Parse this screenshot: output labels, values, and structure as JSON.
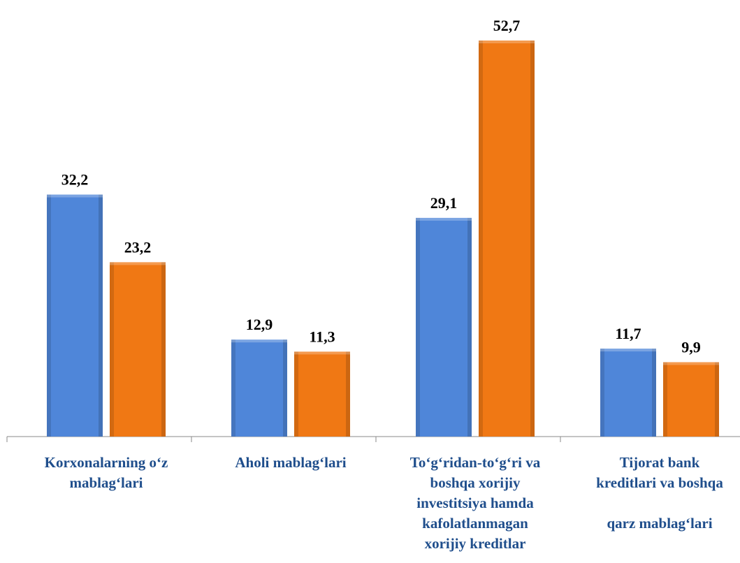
{
  "chart_data": {
    "type": "bar",
    "categories": [
      "Korxonalarning o‘z\nmablag‘lari",
      "Aholi mablag‘lari",
      "To‘g‘ridan-to‘g‘ri va\nboshqa xorijiy\ninvestitsiya hamda\nkafolatlanmagan\nxorijiy kreditlar",
      "Tijorat bank\nkreditlari va boshqa\n\nqarz mablag‘lari"
    ],
    "series": [
      {
        "color": "#4f86d9",
        "values": [
          32.2,
          12.9,
          29.1,
          11.7
        ],
        "value_labels": [
          "32,2",
          "12,9",
          "29,1",
          "11,7"
        ]
      },
      {
        "color": "#f07814",
        "values": [
          23.2,
          11.3,
          52.7,
          9.9
        ],
        "value_labels": [
          "23,2",
          "11,3",
          "52,7",
          "9,9"
        ]
      }
    ]
  }
}
